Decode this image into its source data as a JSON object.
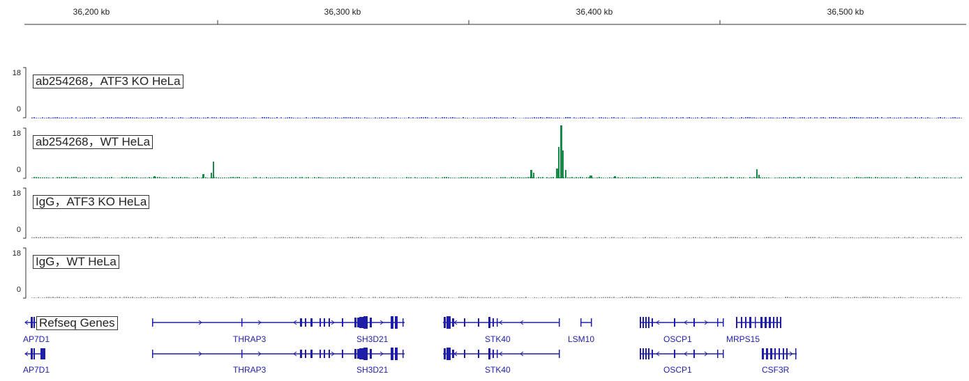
{
  "ruler": {
    "ticks": [
      "36,200 kb",
      "36,300 kb",
      "36,400 kb",
      "36,500 kb"
    ]
  },
  "tracks": [
    {
      "name": "ab254268，ATF3 KO HeLa",
      "max": "18",
      "min": "0",
      "color": "#3b5bd6"
    },
    {
      "name": "ab254268，WT HeLa",
      "max": "18",
      "min": "0",
      "color": "#1a8a4a"
    },
    {
      "name": "IgG，ATF3 KO HeLa",
      "max": "18",
      "min": "0",
      "color": "#999999"
    },
    {
      "name": "IgG，WT HeLa",
      "max": "18",
      "min": "0",
      "color": "#999999"
    }
  ],
  "gene_track": {
    "name": "Refseq Genes",
    "color": "#1e1ea8",
    "row1_labels": [
      "AP7D1",
      "THRAP3",
      "SH3D21",
      "STK40",
      "LSM10",
      "OSCP1",
      "MRPS15"
    ],
    "row2_labels": [
      "AP7D1",
      "THRAP3",
      "SH3D21",
      "STK40",
      "OSCP1",
      "CSF3R"
    ]
  }
}
